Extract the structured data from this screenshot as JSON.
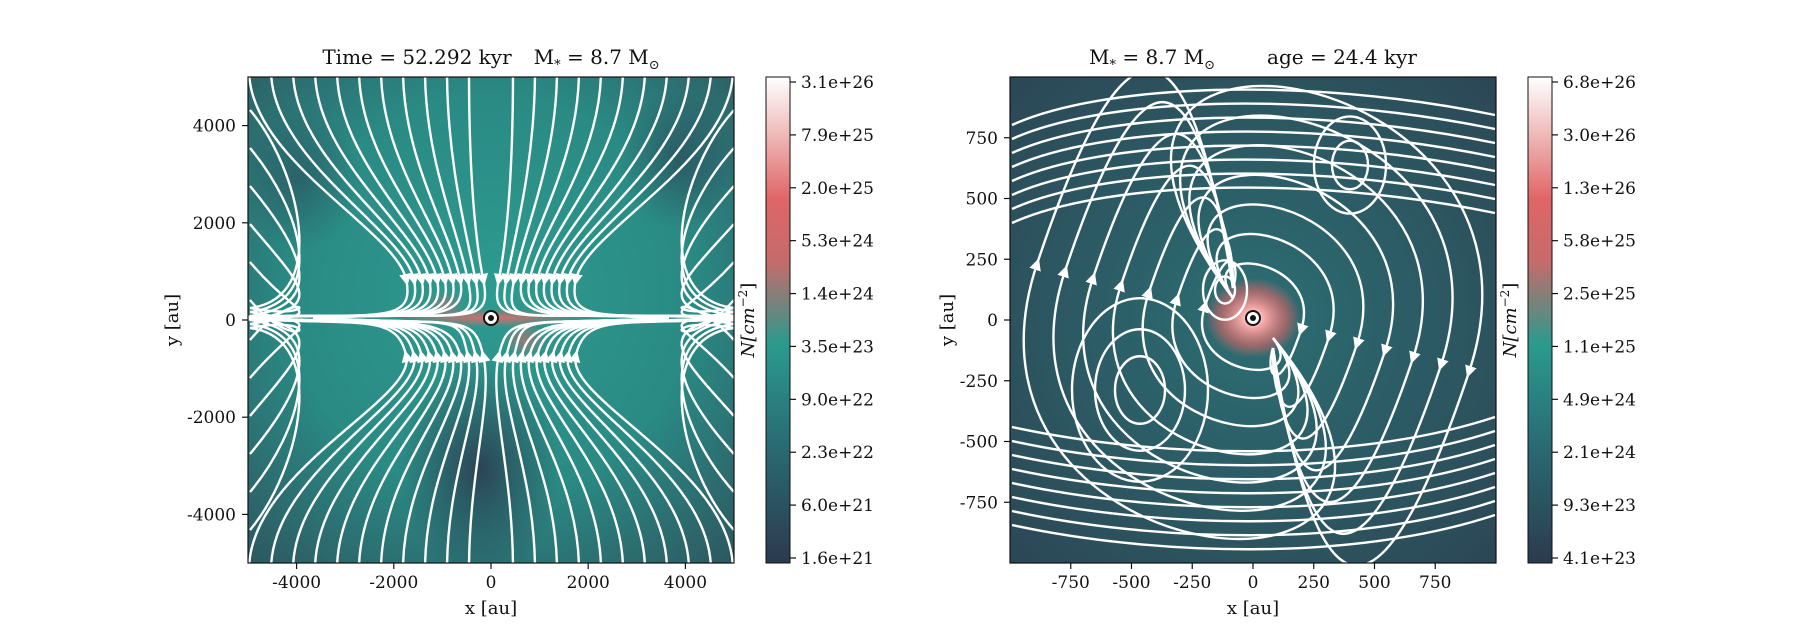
{
  "figure": {
    "panels": [
      {
        "id": "left",
        "title_parts": [
          "Time = 52.292 kyr",
          "M",
          "*",
          " = 8.7 M",
          "⊙"
        ],
        "xlabel": "x [au]",
        "ylabel": "y [au]",
        "cbar_label": "N[cm",
        "cbar_label_sup": "−2",
        "cbar_label_close": "]",
        "xticks": [
          "-4000",
          "-2000",
          "0",
          "2000",
          "4000"
        ],
        "yticks": [
          "4000",
          "2000",
          "0",
          "-2000",
          "-4000"
        ],
        "cbar_ticks": [
          "3.1e+26",
          "7.9e+25",
          "2.0e+25",
          "5.3e+24",
          "1.4e+24",
          "3.5e+23",
          "9.0e+22",
          "2.3e+22",
          "6.0e+21",
          "1.6e+21"
        ]
      },
      {
        "id": "right",
        "title_parts": [
          "M",
          "*",
          " = 8.7 M",
          "⊙",
          "age = 24.4 kyr"
        ],
        "xlabel": "x [au]",
        "ylabel": "y [au]",
        "cbar_label": "N[cm",
        "cbar_label_sup": "−2",
        "cbar_label_close": "]",
        "xticks": [
          "-750",
          "-500",
          "-250",
          "0",
          "250",
          "500",
          "750"
        ],
        "yticks": [
          "750",
          "500",
          "250",
          "0",
          "-250",
          "-500",
          "-750"
        ],
        "cbar_ticks": [
          "6.8e+26",
          "3.0e+26",
          "1.3e+26",
          "5.8e+25",
          "2.5e+25",
          "1.1e+25",
          "4.9e+24",
          "2.1e+24",
          "9.3e+23",
          "4.1e+23"
        ]
      }
    ],
    "colors": {
      "low": "#2c3e50",
      "mid": "#2a9a8e",
      "high": "#e06666",
      "top": "#ffffff",
      "streamline": "#ffffff"
    }
  },
  "chart_data": [
    {
      "type": "heatmap",
      "title": "Time = 52.292 kyr  M* = 8.7 M⊙",
      "xlabel": "x [au]",
      "ylabel": "y [au]",
      "xlim": [
        -5000,
        5000
      ],
      "ylim": [
        -5000,
        5000
      ],
      "colorbar": {
        "label": "N[cm^-2]",
        "scale": "log",
        "range": [
          1.6e+21,
          3.1e+26
        ],
        "ticks": [
          3.1e+26,
          7.9e+25,
          2e+25,
          5.3e+24,
          1.4e+24,
          3.5e+23,
          9e+22,
          2.3e+22,
          6e+21,
          1.6e+21
        ]
      },
      "overlay": "magnetic streamlines (hourglass)"
    },
    {
      "type": "heatmap",
      "title": "M* = 8.7 M⊙  age = 24.4 kyr",
      "xlabel": "x [au]",
      "ylabel": "y [au]",
      "xlim": [
        -1000,
        1000
      ],
      "ylim": [
        -1000,
        1000
      ],
      "colorbar": {
        "label": "N[cm^-2]",
        "scale": "log",
        "range": [
          4.1e+23,
          6.8e+26
        ],
        "ticks": [
          6.8e+26,
          3e+26,
          1.3e+26,
          5.8e+25,
          2.5e+25,
          1.1e+25,
          4.9e+24,
          2.1e+24,
          9.3e+23,
          4.1e+23
        ]
      },
      "overlay": "velocity streamlines (looping)"
    }
  ]
}
